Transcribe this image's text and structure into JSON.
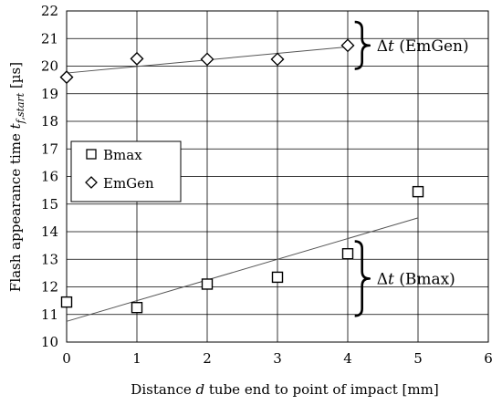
{
  "chart_data": {
    "type": "scatter",
    "xlabel_parts": [
      "Distance ",
      "d",
      " tube end to point of impact [mm]"
    ],
    "ylabel_parts": [
      "Flash appearance time ",
      "t",
      "f,start",
      " [µs]"
    ],
    "xlim": [
      0,
      6
    ],
    "ylim": [
      10,
      22
    ],
    "xticks": [
      0,
      1,
      2,
      3,
      4,
      5,
      6
    ],
    "yticks": [
      10,
      11,
      12,
      13,
      14,
      15,
      16,
      17,
      18,
      19,
      20,
      21,
      22
    ],
    "grid": true,
    "legend_position": "center-left",
    "series": [
      {
        "name": "Bmax",
        "marker": "square",
        "x": [
          0,
          1,
          2,
          3,
          4,
          5
        ],
        "y": [
          11.45,
          11.25,
          12.1,
          12.35,
          13.2,
          15.45
        ],
        "trendline": {
          "x": [
            0,
            5
          ],
          "y": [
            10.75,
            14.5
          ]
        }
      },
      {
        "name": "EmGen",
        "marker": "diamond",
        "x": [
          0,
          1,
          2,
          3,
          4
        ],
        "y": [
          19.6,
          20.27,
          20.25,
          20.25,
          20.75
        ],
        "trendline": {
          "x": [
            0,
            4
          ],
          "y": [
            19.75,
            20.7
          ]
        }
      }
    ],
    "annotations": [
      {
        "delta": "Δ",
        "var": "t",
        "label": " (EmGen)",
        "x_data": 4.1,
        "y_range": [
          19.9,
          21.6
        ]
      },
      {
        "delta": "Δ",
        "var": "t",
        "label": " (Bmax)",
        "x_data": 4.1,
        "y_range": [
          10.95,
          13.65
        ]
      }
    ],
    "colors": {
      "marker": "#000000",
      "trendline": "#555555",
      "grid": "#000000"
    }
  }
}
